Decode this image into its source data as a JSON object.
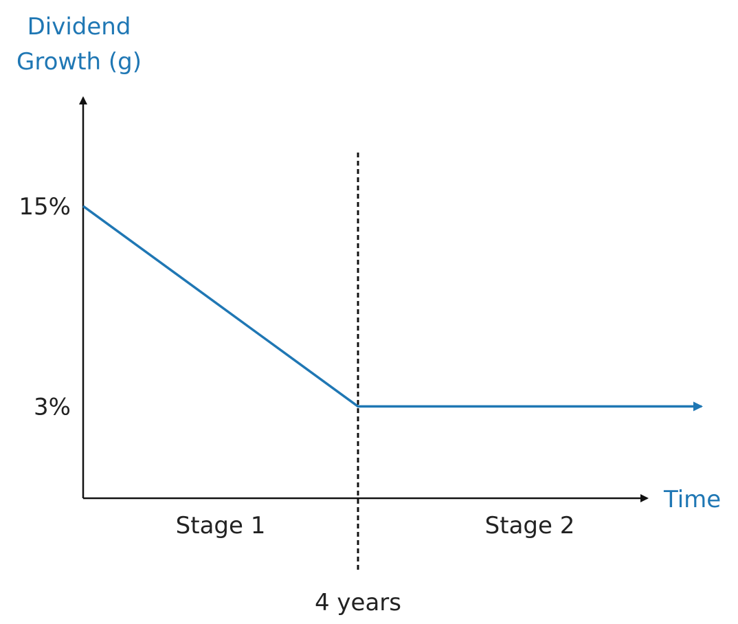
{
  "chart_data": {
    "type": "line",
    "ylabel": [
      "Dividend",
      "Growth (g)"
    ],
    "xlabel": "Time",
    "y_ticks": [
      {
        "value": 15,
        "label": "15%"
      },
      {
        "value": 3,
        "label": "3%"
      }
    ],
    "series": [
      {
        "x": [
          0,
          4,
          9
        ],
        "y": [
          15,
          3,
          3
        ],
        "color": "#1f77b4",
        "arrow_end": true
      }
    ],
    "marker": {
      "x": 4,
      "label": "4 years",
      "style": "dashed"
    },
    "regions": [
      {
        "label": "Stage 1",
        "from": 0,
        "to": 4
      },
      {
        "label": "Stage 2",
        "from": 4,
        "to": 9
      }
    ],
    "xlim": [
      0,
      10
    ],
    "ylim": [
      -2.5,
      21.5
    ]
  }
}
